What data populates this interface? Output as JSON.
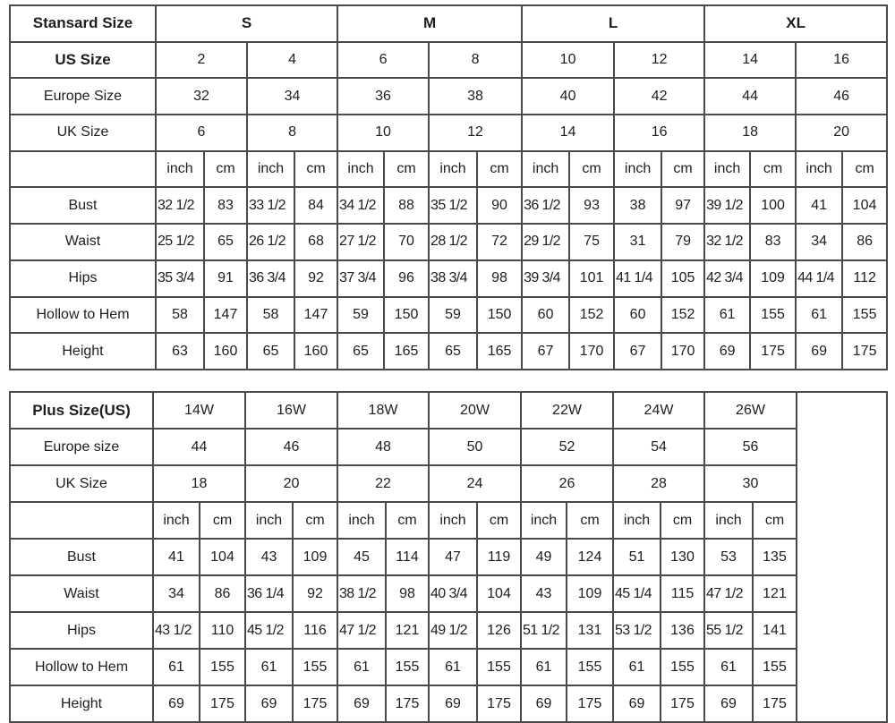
{
  "standard": {
    "header_label": "Stansard Size",
    "groups": [
      "S",
      "M",
      "L",
      "XL"
    ],
    "us_label": "US Size",
    "us": [
      "2",
      "4",
      "6",
      "8",
      "10",
      "12",
      "14",
      "16"
    ],
    "europe_label": "Europe Size",
    "europe": [
      "32",
      "34",
      "36",
      "38",
      "40",
      "42",
      "44",
      "46"
    ],
    "uk_label": "UK Size",
    "uk": [
      "6",
      "8",
      "10",
      "12",
      "14",
      "16",
      "18",
      "20"
    ],
    "unit_inch": "inch",
    "unit_cm": "cm",
    "measurements": [
      {
        "label": "Bust",
        "values": [
          "32 1/2",
          "83",
          "33 1/2",
          "84",
          "34 1/2",
          "88",
          "35 1/2",
          "90",
          "36 1/2",
          "93",
          "38",
          "97",
          "39 1/2",
          "100",
          "41",
          "104"
        ]
      },
      {
        "label": "Waist",
        "values": [
          "25 1/2",
          "65",
          "26 1/2",
          "68",
          "27 1/2",
          "70",
          "28 1/2",
          "72",
          "29 1/2",
          "75",
          "31",
          "79",
          "32 1/2",
          "83",
          "34",
          "86"
        ]
      },
      {
        "label": "Hips",
        "values": [
          "35 3/4",
          "91",
          "36 3/4",
          "92",
          "37 3/4",
          "96",
          "38 3/4",
          "98",
          "39 3/4",
          "101",
          "41 1/4",
          "105",
          "42 3/4",
          "109",
          "44 1/4",
          "112"
        ]
      },
      {
        "label": "Hollow to Hem",
        "values": [
          "58",
          "147",
          "58",
          "147",
          "59",
          "150",
          "59",
          "150",
          "60",
          "152",
          "60",
          "152",
          "61",
          "155",
          "61",
          "155"
        ]
      },
      {
        "label": "Height",
        "values": [
          "63",
          "160",
          "65",
          "160",
          "65",
          "165",
          "65",
          "165",
          "67",
          "170",
          "67",
          "170",
          "69",
          "175",
          "69",
          "175"
        ]
      }
    ]
  },
  "plus": {
    "header_label": "Plus Size(US)",
    "us": [
      "14W",
      "16W",
      "18W",
      "20W",
      "22W",
      "24W",
      "26W"
    ],
    "europe_label": "Europe size",
    "europe": [
      "44",
      "46",
      "48",
      "50",
      "52",
      "54",
      "56"
    ],
    "uk_label": "UK Size",
    "uk": [
      "18",
      "20",
      "22",
      "24",
      "26",
      "28",
      "30"
    ],
    "unit_inch": "inch",
    "unit_cm": "cm",
    "measurements": [
      {
        "label": "Bust",
        "values": [
          "41",
          "104",
          "43",
          "109",
          "45",
          "114",
          "47",
          "119",
          "49",
          "124",
          "51",
          "130",
          "53",
          "135"
        ]
      },
      {
        "label": "Waist",
        "values": [
          "34",
          "86",
          "36 1/4",
          "92",
          "38 1/2",
          "98",
          "40 3/4",
          "104",
          "43",
          "109",
          "45 1/4",
          "115",
          "47 1/2",
          "121"
        ]
      },
      {
        "label": "Hips",
        "values": [
          "43 1/2",
          "110",
          "45 1/2",
          "116",
          "47 1/2",
          "121",
          "49 1/2",
          "126",
          "51 1/2",
          "131",
          "53 1/2",
          "136",
          "55 1/2",
          "141"
        ]
      },
      {
        "label": "Hollow to Hem",
        "values": [
          "61",
          "155",
          "61",
          "155",
          "61",
          "155",
          "61",
          "155",
          "61",
          "155",
          "61",
          "155",
          "61",
          "155"
        ]
      },
      {
        "label": "Height",
        "values": [
          "69",
          "175",
          "69",
          "175",
          "69",
          "175",
          "69",
          "175",
          "69",
          "175",
          "69",
          "175",
          "69",
          "175"
        ]
      }
    ]
  }
}
